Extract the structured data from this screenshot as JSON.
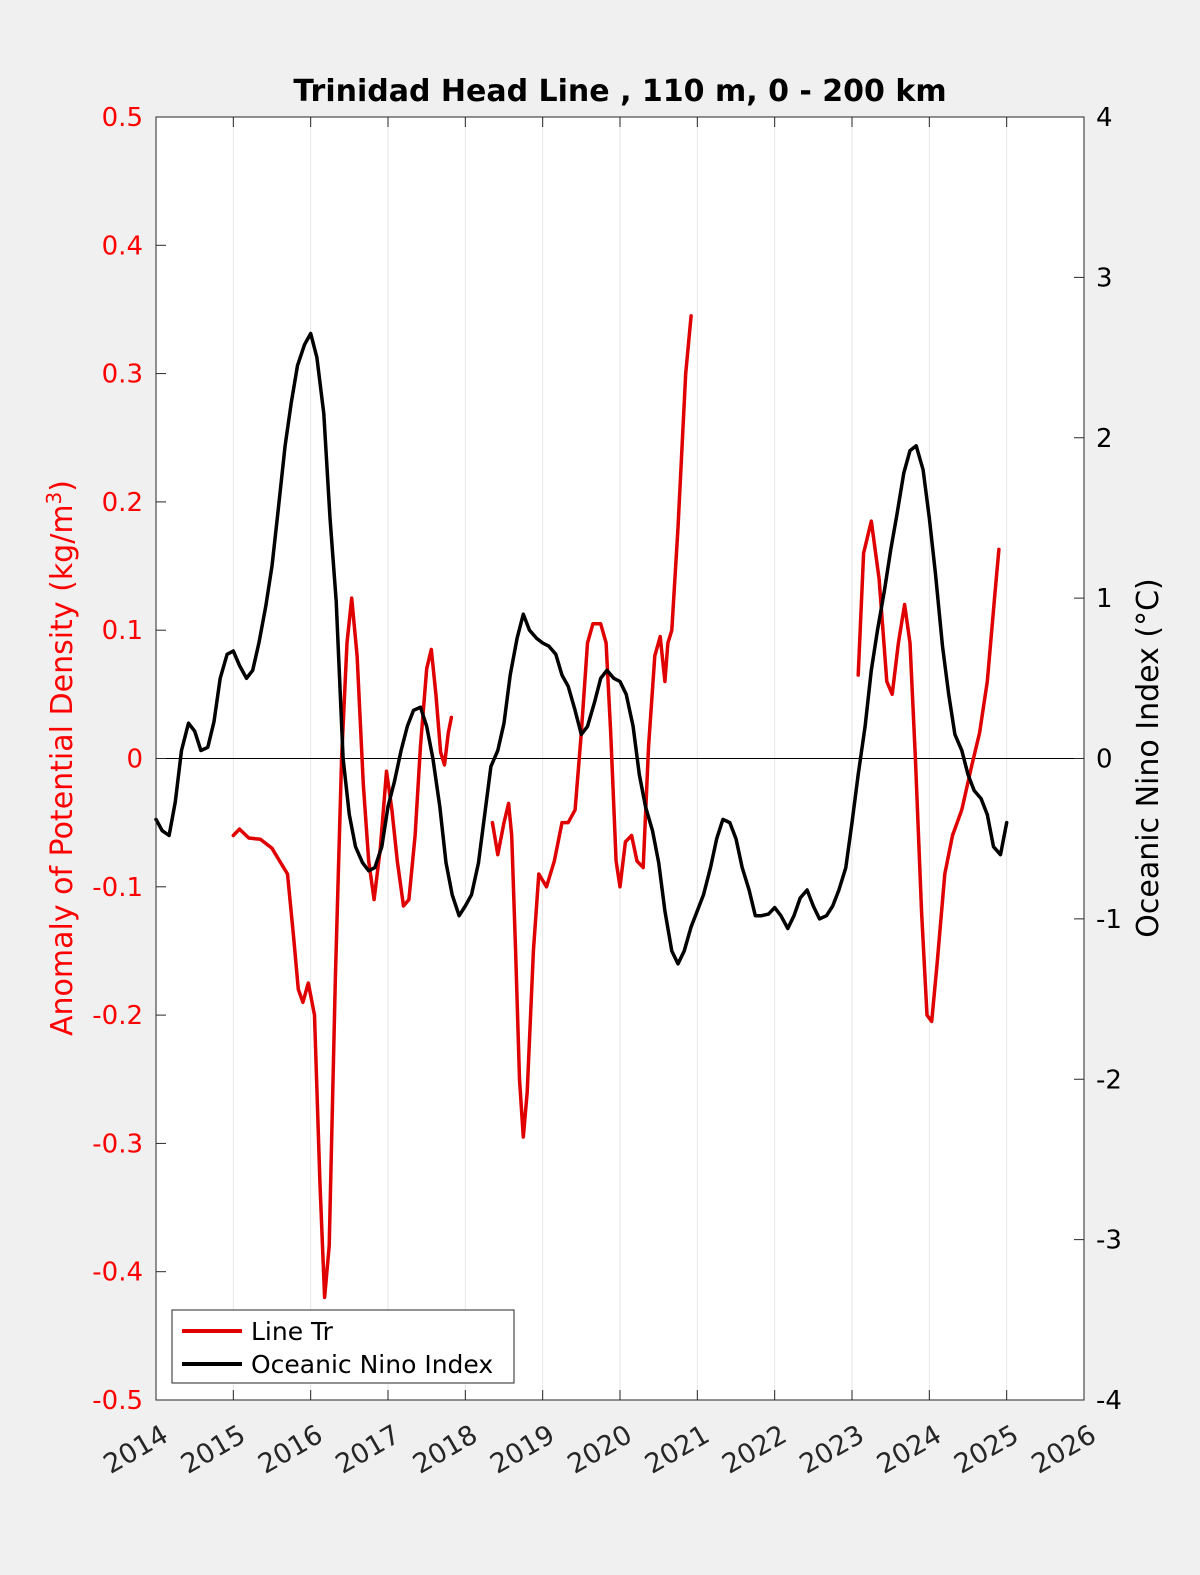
{
  "chart_data": {
    "type": "line",
    "title": "Trinidad Head Line , 110 m, 0 - 200 km",
    "y_left": {
      "label_main": "Anomaly of Potential Density (kg/m",
      "label_sup": "3",
      "label_close": ")",
      "range": [
        -0.5,
        0.5
      ],
      "ticks": [
        -0.5,
        -0.4,
        -0.3,
        -0.2,
        -0.1,
        0,
        0.1,
        0.2,
        0.3,
        0.4,
        0.5
      ],
      "tick_labels": [
        "-0.5",
        "-0.4",
        "-0.3",
        "-0.2",
        "-0.1",
        "0",
        "0.1",
        "0.2",
        "0.3",
        "0.4",
        "0.5"
      ],
      "color": "#ff0000"
    },
    "y_right": {
      "label": "Oceanic Nino Index (°C)",
      "range": [
        -4,
        4
      ],
      "ticks": [
        -4,
        -3,
        -2,
        -1,
        0,
        1,
        2,
        3,
        4
      ],
      "tick_labels": [
        "-4",
        "-3",
        "-2",
        "-1",
        "0",
        "1",
        "2",
        "3",
        "4"
      ],
      "color": "#000000"
    },
    "x_axis": {
      "range": [
        2014,
        2026
      ],
      "ticks": [
        2014,
        2015,
        2016,
        2017,
        2018,
        2019,
        2020,
        2021,
        2022,
        2023,
        2024,
        2025,
        2026
      ],
      "tick_labels": [
        "2014",
        "2015",
        "2016",
        "2017",
        "2018",
        "2019",
        "2020",
        "2021",
        "2022",
        "2023",
        "2024",
        "2025",
        "2026"
      ]
    },
    "grid": "vertical",
    "legend_position": "bottom-left",
    "series": [
      {
        "name": "Line Tr",
        "axis": "left",
        "color": "#e00000",
        "segments": [
          [
            [
              2015.0,
              -0.06
            ],
            [
              2015.08,
              -0.055
            ],
            [
              2015.2,
              -0.062
            ],
            [
              2015.35,
              -0.063
            ],
            [
              2015.5,
              -0.07
            ],
            [
              2015.6,
              -0.08
            ],
            [
              2015.7,
              -0.09
            ],
            [
              2015.78,
              -0.14
            ],
            [
              2015.84,
              -0.18
            ],
            [
              2015.9,
              -0.19
            ],
            [
              2015.97,
              -0.175
            ],
            [
              2016.05,
              -0.2
            ],
            [
              2016.12,
              -0.33
            ],
            [
              2016.18,
              -0.42
            ],
            [
              2016.24,
              -0.38
            ],
            [
              2016.32,
              -0.17
            ],
            [
              2016.4,
              0.0
            ],
            [
              2016.47,
              0.09
            ],
            [
              2016.53,
              0.125
            ],
            [
              2016.6,
              0.08
            ],
            [
              2016.68,
              -0.02
            ],
            [
              2016.75,
              -0.08
            ],
            [
              2016.82,
              -0.11
            ],
            [
              2016.9,
              -0.07
            ],
            [
              2016.98,
              -0.01
            ],
            [
              2017.05,
              -0.04
            ],
            [
              2017.12,
              -0.08
            ],
            [
              2017.2,
              -0.115
            ],
            [
              2017.27,
              -0.11
            ],
            [
              2017.35,
              -0.06
            ],
            [
              2017.42,
              0.01
            ],
            [
              2017.5,
              0.07
            ],
            [
              2017.56,
              0.085
            ],
            [
              2017.62,
              0.05
            ],
            [
              2017.68,
              0.005
            ],
            [
              2017.73,
              -0.005
            ],
            [
              2017.78,
              0.02
            ],
            [
              2017.82,
              0.032
            ]
          ],
          [
            [
              2018.35,
              -0.05
            ],
            [
              2018.42,
              -0.075
            ],
            [
              2018.5,
              -0.05
            ],
            [
              2018.56,
              -0.035
            ],
            [
              2018.6,
              -0.06
            ],
            [
              2018.65,
              -0.15
            ],
            [
              2018.7,
              -0.25
            ],
            [
              2018.75,
              -0.295
            ],
            [
              2018.8,
              -0.26
            ],
            [
              2018.88,
              -0.15
            ],
            [
              2018.95,
              -0.09
            ],
            [
              2019.05,
              -0.1
            ],
            [
              2019.15,
              -0.08
            ],
            [
              2019.25,
              -0.05
            ],
            [
              2019.33,
              -0.05
            ],
            [
              2019.42,
              -0.04
            ],
            [
              2019.5,
              0.02
            ],
            [
              2019.58,
              0.09
            ],
            [
              2019.65,
              0.105
            ],
            [
              2019.75,
              0.105
            ],
            [
              2019.82,
              0.09
            ],
            [
              2019.88,
              0.02
            ],
            [
              2019.95,
              -0.08
            ],
            [
              2020.0,
              -0.1
            ],
            [
              2020.07,
              -0.065
            ],
            [
              2020.15,
              -0.06
            ],
            [
              2020.22,
              -0.08
            ],
            [
              2020.3,
              -0.085
            ],
            [
              2020.37,
              0.01
            ],
            [
              2020.45,
              0.08
            ],
            [
              2020.52,
              0.095
            ],
            [
              2020.58,
              0.06
            ],
            [
              2020.62,
              0.09
            ],
            [
              2020.67,
              0.1
            ],
            [
              2020.75,
              0.18
            ],
            [
              2020.85,
              0.3
            ],
            [
              2020.92,
              0.345
            ]
          ],
          [
            [
              2023.08,
              0.065
            ],
            [
              2023.15,
              0.16
            ],
            [
              2023.25,
              0.185
            ],
            [
              2023.35,
              0.14
            ],
            [
              2023.45,
              0.06
            ],
            [
              2023.52,
              0.05
            ],
            [
              2023.6,
              0.09
            ],
            [
              2023.68,
              0.12
            ],
            [
              2023.75,
              0.09
            ],
            [
              2023.82,
              0.0
            ],
            [
              2023.9,
              -0.12
            ],
            [
              2023.97,
              -0.2
            ],
            [
              2024.03,
              -0.205
            ],
            [
              2024.1,
              -0.16
            ],
            [
              2024.2,
              -0.09
            ],
            [
              2024.3,
              -0.06
            ],
            [
              2024.42,
              -0.04
            ],
            [
              2024.55,
              -0.005
            ],
            [
              2024.65,
              0.02
            ],
            [
              2024.75,
              0.06
            ],
            [
              2024.85,
              0.13
            ],
            [
              2024.9,
              0.163
            ]
          ]
        ]
      },
      {
        "name": "Oceanic Nino Index",
        "axis": "right",
        "color": "#000000",
        "segments": [
          [
            [
              2014.0,
              -0.38
            ],
            [
              2014.08,
              -0.45
            ],
            [
              2014.17,
              -0.48
            ],
            [
              2014.25,
              -0.27
            ],
            [
              2014.33,
              0.05
            ],
            [
              2014.42,
              0.22
            ],
            [
              2014.5,
              0.17
            ],
            [
              2014.58,
              0.05
            ],
            [
              2014.67,
              0.07
            ],
            [
              2014.75,
              0.23
            ],
            [
              2014.83,
              0.5
            ],
            [
              2014.92,
              0.65
            ],
            [
              2015.0,
              0.67
            ],
            [
              2015.08,
              0.58
            ],
            [
              2015.17,
              0.5
            ],
            [
              2015.25,
              0.55
            ],
            [
              2015.33,
              0.72
            ],
            [
              2015.42,
              0.95
            ],
            [
              2015.5,
              1.2
            ],
            [
              2015.58,
              1.55
            ],
            [
              2015.67,
              1.95
            ],
            [
              2015.75,
              2.22
            ],
            [
              2015.83,
              2.45
            ],
            [
              2015.92,
              2.58
            ],
            [
              2016.0,
              2.65
            ],
            [
              2016.08,
              2.5
            ],
            [
              2016.17,
              2.15
            ],
            [
              2016.25,
              1.5
            ],
            [
              2016.33,
              0.98
            ],
            [
              2016.42,
              0.0
            ],
            [
              2016.5,
              -0.35
            ],
            [
              2016.58,
              -0.55
            ],
            [
              2016.67,
              -0.65
            ],
            [
              2016.75,
              -0.7
            ],
            [
              2016.83,
              -0.68
            ],
            [
              2016.92,
              -0.55
            ],
            [
              2017.0,
              -0.3
            ],
            [
              2017.08,
              -0.15
            ],
            [
              2017.17,
              0.05
            ],
            [
              2017.25,
              0.2
            ],
            [
              2017.33,
              0.3
            ],
            [
              2017.42,
              0.32
            ],
            [
              2017.5,
              0.2
            ],
            [
              2017.58,
              0.0
            ],
            [
              2017.67,
              -0.3
            ],
            [
              2017.75,
              -0.65
            ],
            [
              2017.83,
              -0.85
            ],
            [
              2017.92,
              -0.98
            ],
            [
              2018.0,
              -0.92
            ],
            [
              2018.08,
              -0.85
            ],
            [
              2018.17,
              -0.65
            ],
            [
              2018.25,
              -0.35
            ],
            [
              2018.33,
              -0.05
            ],
            [
              2018.42,
              0.05
            ],
            [
              2018.5,
              0.22
            ],
            [
              2018.58,
              0.52
            ],
            [
              2018.67,
              0.75
            ],
            [
              2018.75,
              0.9
            ],
            [
              2018.83,
              0.8
            ],
            [
              2018.92,
              0.75
            ],
            [
              2019.0,
              0.72
            ],
            [
              2019.08,
              0.7
            ],
            [
              2019.17,
              0.65
            ],
            [
              2019.25,
              0.52
            ],
            [
              2019.33,
              0.45
            ],
            [
              2019.42,
              0.3
            ],
            [
              2019.5,
              0.15
            ],
            [
              2019.58,
              0.2
            ],
            [
              2019.67,
              0.35
            ],
            [
              2019.75,
              0.5
            ],
            [
              2019.83,
              0.55
            ],
            [
              2019.92,
              0.5
            ],
            [
              2020.0,
              0.48
            ],
            [
              2020.08,
              0.4
            ],
            [
              2020.17,
              0.2
            ],
            [
              2020.25,
              -0.1
            ],
            [
              2020.33,
              -0.3
            ],
            [
              2020.42,
              -0.45
            ],
            [
              2020.5,
              -0.65
            ],
            [
              2020.58,
              -0.95
            ],
            [
              2020.67,
              -1.2
            ],
            [
              2020.75,
              -1.28
            ],
            [
              2020.83,
              -1.2
            ],
            [
              2020.92,
              -1.05
            ],
            [
              2021.0,
              -0.95
            ],
            [
              2021.08,
              -0.85
            ],
            [
              2021.17,
              -0.68
            ],
            [
              2021.25,
              -0.5
            ],
            [
              2021.33,
              -0.38
            ],
            [
              2021.42,
              -0.4
            ],
            [
              2021.5,
              -0.5
            ],
            [
              2021.58,
              -0.68
            ],
            [
              2021.67,
              -0.82
            ],
            [
              2021.75,
              -0.98
            ],
            [
              2021.83,
              -0.98
            ],
            [
              2021.92,
              -0.97
            ],
            [
              2022.0,
              -0.93
            ],
            [
              2022.08,
              -0.98
            ],
            [
              2022.17,
              -1.06
            ],
            [
              2022.25,
              -0.98
            ],
            [
              2022.33,
              -0.87
            ],
            [
              2022.42,
              -0.82
            ],
            [
              2022.5,
              -0.92
            ],
            [
              2022.58,
              -1.0
            ],
            [
              2022.67,
              -0.98
            ],
            [
              2022.75,
              -0.92
            ],
            [
              2022.83,
              -0.82
            ],
            [
              2022.92,
              -0.68
            ],
            [
              2023.0,
              -0.4
            ],
            [
              2023.08,
              -0.1
            ],
            [
              2023.17,
              0.2
            ],
            [
              2023.25,
              0.55
            ],
            [
              2023.33,
              0.8
            ],
            [
              2023.42,
              1.05
            ],
            [
              2023.5,
              1.3
            ],
            [
              2023.58,
              1.52
            ],
            [
              2023.67,
              1.78
            ],
            [
              2023.75,
              1.92
            ],
            [
              2023.83,
              1.95
            ],
            [
              2023.92,
              1.8
            ],
            [
              2024.0,
              1.5
            ],
            [
              2024.08,
              1.15
            ],
            [
              2024.17,
              0.7
            ],
            [
              2024.25,
              0.4
            ],
            [
              2024.33,
              0.15
            ],
            [
              2024.42,
              0.05
            ],
            [
              2024.5,
              -0.1
            ],
            [
              2024.58,
              -0.2
            ],
            [
              2024.67,
              -0.25
            ],
            [
              2024.75,
              -0.35
            ],
            [
              2024.83,
              -0.55
            ],
            [
              2024.92,
              -0.6
            ],
            [
              2025.0,
              -0.4
            ]
          ]
        ]
      }
    ]
  }
}
